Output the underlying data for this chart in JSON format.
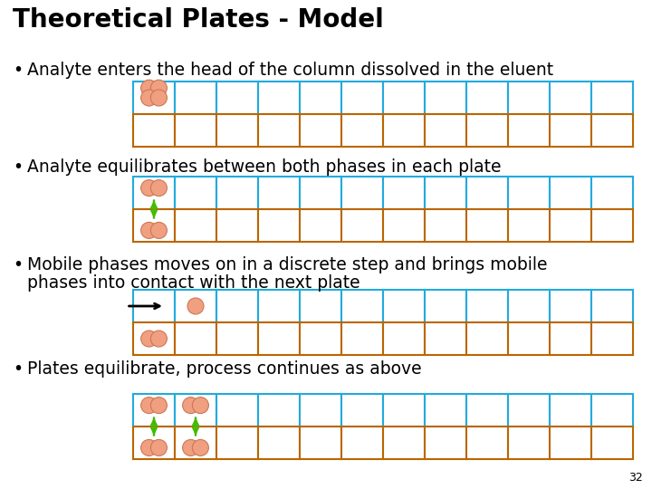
{
  "title": "Theoretical Plates - Model",
  "title_fontsize": 20,
  "title_fontweight": "bold",
  "background_color": "#ffffff",
  "bullet1": "Analyte enters the head of the column dissolved in the eluent",
  "bullet2": "Analyte equilibrates between both phases in each plate",
  "bullet3_line1": "Mobile phases moves on in a discrete step and brings mobile",
  "bullet3_line2": "phases into contact with the next plate",
  "bullet4": "Plates equilibrate, process continues as above",
  "num_cols": 12,
  "grid_top_color": "#22aadd",
  "grid_bottom_color": "#bb6600",
  "analyte_color": "#f0a080",
  "analyte_outline": "#cc7755",
  "arrow_color": "#44bb00",
  "move_arrow_color": "#000000",
  "page_number": "32",
  "text_fontsize": 13.5,
  "text_color": "#000000"
}
